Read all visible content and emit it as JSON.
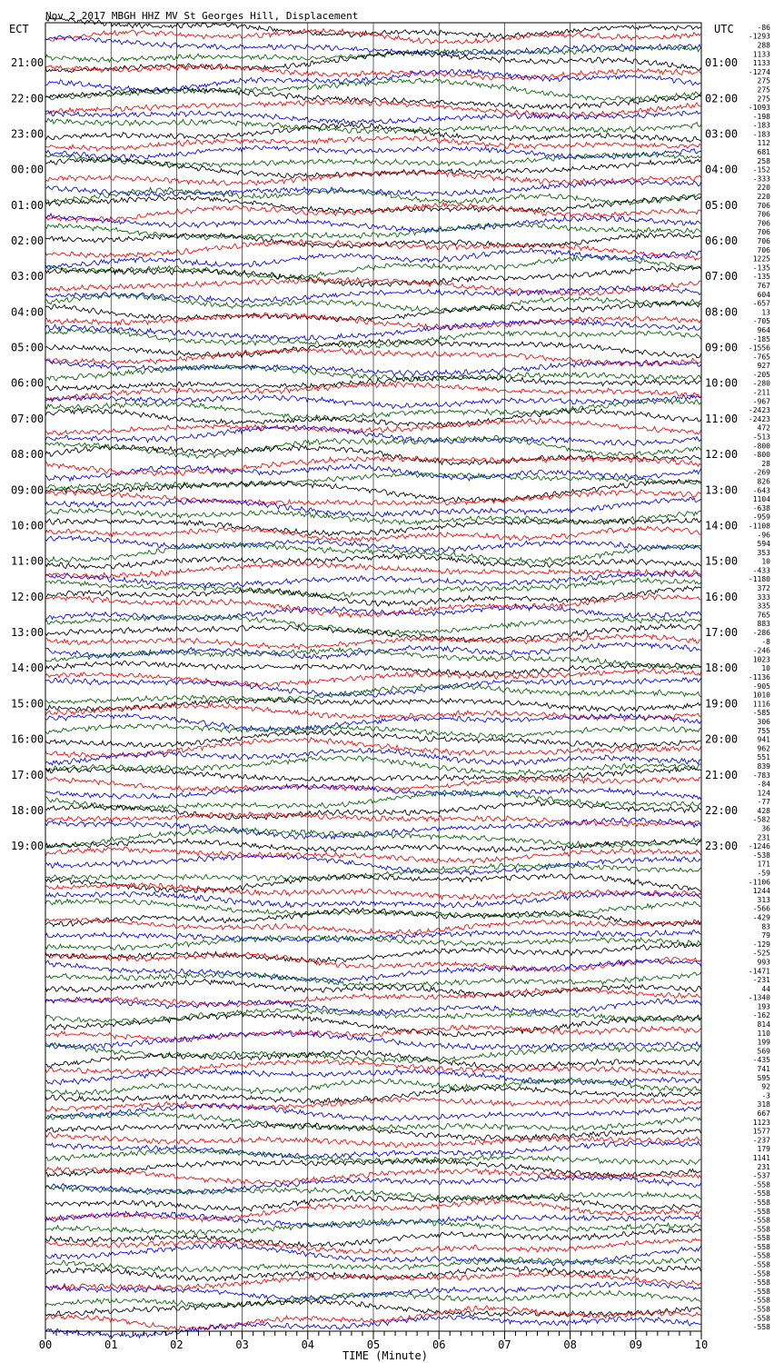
{
  "chart_data": {
    "type": "line",
    "title": "Nov  2 2017 MBGH HHZ MV St Georges Hill, Displacement",
    "left_axis_label": "ECT",
    "right_axis_label": "UTC",
    "xlabel": "TIME (Minute)",
    "xlim": [
      0,
      10
    ],
    "x_ticks": [
      "00",
      "01",
      "02",
      "03",
      "04",
      "05",
      "06",
      "07",
      "08",
      "09",
      "10"
    ],
    "minutes_per_row": 10,
    "trace_colors": [
      "#000000",
      "#ff0000",
      "#0000ff",
      "#006400"
    ],
    "left_hour_labels": [
      "21:00",
      "22:00",
      "23:00",
      "00:00",
      "01:00",
      "02:00",
      "03:00",
      "04:00",
      "05:00",
      "06:00",
      "07:00",
      "08:00",
      "09:00",
      "10:00",
      "11:00",
      "12:00",
      "13:00",
      "14:00",
      "15:00",
      "16:00",
      "17:00",
      "18:00",
      "19:00"
    ],
    "right_hour_labels": [
      "01:00",
      "02:00",
      "03:00",
      "04:00",
      "05:00",
      "06:00",
      "07:00",
      "08:00",
      "09:00",
      "10:00",
      "11:00",
      "12:00",
      "13:00",
      "14:00",
      "15:00",
      "16:00",
      "17:00",
      "18:00",
      "19:00",
      "20:00",
      "21:00",
      "22:00",
      "23:00"
    ],
    "row_offsets": [
      "-86",
      "-1293",
      "288",
      "1133",
      "1133",
      "-1274",
      "275",
      "275",
      "275",
      "-1093",
      "-198",
      "-183",
      "-183",
      "112",
      "681",
      "258",
      "-152",
      "-333",
      "220",
      "220",
      "706",
      "706",
      "706",
      "706",
      "706",
      "706",
      "1225",
      "-135",
      "-135",
      "767",
      "604",
      "-657",
      "13",
      "-705",
      "964",
      "-185",
      "-1556",
      "-765",
      "927",
      "-205",
      "-280",
      "-211",
      "-967",
      "-2423",
      "-2423",
      "472",
      "-513",
      "-800",
      "-800",
      "28",
      "-269",
      "826",
      "-643",
      "1104",
      "-638",
      "-959",
      "-1108",
      "-96",
      "594",
      "353",
      "10",
      "-433",
      "-1180",
      "372",
      "333",
      "335",
      "765",
      "883",
      "-286",
      "-8",
      "-246",
      "1023",
      "10",
      "-1136",
      "-905",
      "1010",
      "1116",
      "-585",
      "306",
      "755",
      "941",
      "962",
      "551",
      "839",
      "-783",
      "-84",
      "124",
      "-77",
      "428",
      "-582",
      "36",
      "231",
      "-1246",
      "-538",
      "171",
      "-59",
      "-1106",
      "1244",
      "313",
      "-566",
      "-429",
      "83",
      "79",
      "-129",
      "-525",
      "993",
      "-1471",
      "-231",
      "44",
      "-1340",
      "193",
      "-162",
      "814",
      "110",
      "199",
      "569",
      "-435",
      "741",
      "595",
      "92",
      "-3",
      "318",
      "667",
      "1123",
      "1577",
      "-237",
      "179",
      "1141",
      "231",
      "-537",
      "-558",
      "-558",
      "-558",
      "-558",
      "-558",
      "-558",
      "-558",
      "-558",
      "-558",
      "-558",
      "-558",
      "-558",
      "-558",
      "-558",
      "-558",
      "-558",
      "-558"
    ]
  }
}
